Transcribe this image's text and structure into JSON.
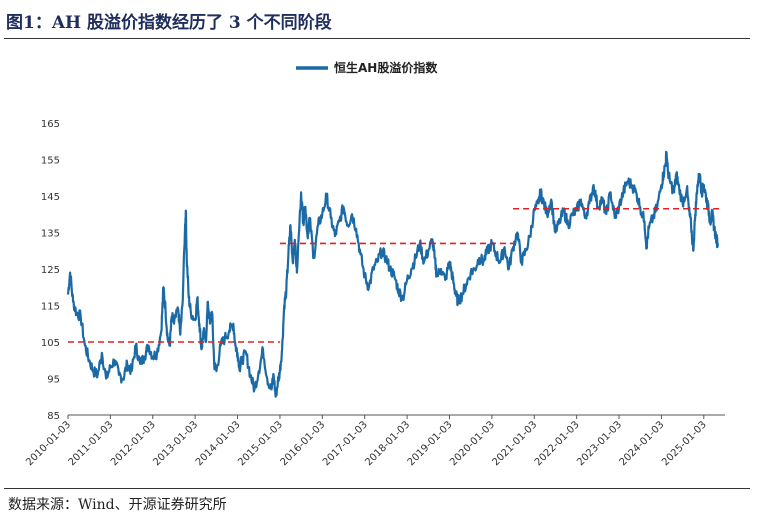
{
  "figure": {
    "title": "图1：AH 股溢价指数经历了 3 个不同阶段",
    "source": "数据来源：Wind、开源证券研究所"
  },
  "colors": {
    "series": "#1b6aa5",
    "reference": "#e02020"
  },
  "chart_data": {
    "type": "line",
    "title": "",
    "legend": [
      "恒生AH股溢价指数"
    ],
    "legend_position": "top-center",
    "xlabel": "",
    "ylabel": "",
    "ylim": [
      85,
      168
    ],
    "yticks": [
      85,
      95,
      105,
      115,
      125,
      135,
      145,
      155,
      165
    ],
    "xlim": [
      2010.0,
      2025.5
    ],
    "x_tick_labels": [
      "2010-01-03",
      "2011-01-03",
      "2012-01-03",
      "2013-01-03",
      "2014-01-03",
      "2015-01-03",
      "2016-01-03",
      "2017-01-03",
      "2018-01-03",
      "2019-01-03",
      "2020-01-03",
      "2021-01-03",
      "2022-01-03",
      "2023-01-03",
      "2024-01-03",
      "2025-01-03"
    ],
    "series": [
      {
        "name": "恒生AH股溢价指数",
        "points": [
          [
            2010.0,
            118
          ],
          [
            2010.05,
            124
          ],
          [
            2010.12,
            116
          ],
          [
            2010.2,
            113
          ],
          [
            2010.3,
            112
          ],
          [
            2010.4,
            104
          ],
          [
            2010.5,
            100
          ],
          [
            2010.6,
            97
          ],
          [
            2010.7,
            96
          ],
          [
            2010.8,
            102
          ],
          [
            2010.9,
            95
          ],
          [
            2011.0,
            98
          ],
          [
            2011.1,
            100
          ],
          [
            2011.2,
            96
          ],
          [
            2011.3,
            95
          ],
          [
            2011.4,
            99
          ],
          [
            2011.5,
            97
          ],
          [
            2011.6,
            104
          ],
          [
            2011.7,
            99
          ],
          [
            2011.8,
            101
          ],
          [
            2011.9,
            104
          ],
          [
            2012.0,
            101
          ],
          [
            2012.1,
            102
          ],
          [
            2012.2,
            108
          ],
          [
            2012.25,
            120
          ],
          [
            2012.3,
            114
          ],
          [
            2012.35,
            106
          ],
          [
            2012.4,
            104
          ],
          [
            2012.45,
            112
          ],
          [
            2012.5,
            110
          ],
          [
            2012.6,
            114
          ],
          [
            2012.65,
            107
          ],
          [
            2012.7,
            115
          ],
          [
            2012.76,
            136
          ],
          [
            2012.78,
            141
          ],
          [
            2012.8,
            128
          ],
          [
            2012.85,
            117
          ],
          [
            2012.9,
            113
          ],
          [
            2013.0,
            111
          ],
          [
            2013.05,
            117
          ],
          [
            2013.1,
            110
          ],
          [
            2013.15,
            103
          ],
          [
            2013.2,
            108
          ],
          [
            2013.25,
            105
          ],
          [
            2013.3,
            116
          ],
          [
            2013.35,
            110
          ],
          [
            2013.4,
            113
          ],
          [
            2013.45,
            99
          ],
          [
            2013.5,
            97
          ],
          [
            2013.6,
            104
          ],
          [
            2013.7,
            106
          ],
          [
            2013.8,
            108
          ],
          [
            2013.9,
            110
          ],
          [
            2013.95,
            104
          ],
          [
            2014.0,
            102
          ],
          [
            2014.05,
            98
          ],
          [
            2014.1,
            100
          ],
          [
            2014.2,
            102
          ],
          [
            2014.3,
            96
          ],
          [
            2014.4,
            92
          ],
          [
            2014.5,
            97
          ],
          [
            2014.6,
            103
          ],
          [
            2014.7,
            95
          ],
          [
            2014.8,
            92
          ],
          [
            2014.85,
            96
          ],
          [
            2014.9,
            90
          ],
          [
            2014.95,
            94
          ],
          [
            2015.0,
            97
          ],
          [
            2015.05,
            103
          ],
          [
            2015.1,
            115
          ],
          [
            2015.15,
            119
          ],
          [
            2015.2,
            129
          ],
          [
            2015.25,
            137
          ],
          [
            2015.3,
            127
          ],
          [
            2015.35,
            133
          ],
          [
            2015.4,
            124
          ],
          [
            2015.5,
            146
          ],
          [
            2015.55,
            138
          ],
          [
            2015.6,
            142
          ],
          [
            2015.65,
            134
          ],
          [
            2015.7,
            139
          ],
          [
            2015.8,
            128
          ],
          [
            2015.9,
            137
          ],
          [
            2016.0,
            140
          ],
          [
            2016.1,
            145
          ],
          [
            2016.2,
            139
          ],
          [
            2016.3,
            134
          ],
          [
            2016.4,
            138
          ],
          [
            2016.5,
            142
          ],
          [
            2016.6,
            137
          ],
          [
            2016.7,
            140
          ],
          [
            2016.8,
            136
          ],
          [
            2016.9,
            129
          ],
          [
            2017.0,
            123
          ],
          [
            2017.1,
            120
          ],
          [
            2017.2,
            125
          ],
          [
            2017.3,
            127
          ],
          [
            2017.4,
            130
          ],
          [
            2017.5,
            128
          ],
          [
            2017.6,
            125
          ],
          [
            2017.7,
            123
          ],
          [
            2017.8,
            119
          ],
          [
            2017.9,
            117
          ],
          [
            2018.0,
            122
          ],
          [
            2018.1,
            125
          ],
          [
            2018.2,
            128
          ],
          [
            2018.3,
            132
          ],
          [
            2018.4,
            127
          ],
          [
            2018.5,
            130
          ],
          [
            2018.6,
            133
          ],
          [
            2018.65,
            128
          ],
          [
            2018.7,
            123
          ],
          [
            2018.8,
            125
          ],
          [
            2018.9,
            122
          ],
          [
            2019.0,
            127
          ],
          [
            2019.05,
            124
          ],
          [
            2019.1,
            121
          ],
          [
            2019.15,
            118
          ],
          [
            2019.2,
            116
          ],
          [
            2019.3,
            118
          ],
          [
            2019.4,
            121
          ],
          [
            2019.5,
            124
          ],
          [
            2019.6,
            125
          ],
          [
            2019.7,
            128
          ],
          [
            2019.8,
            127
          ],
          [
            2019.9,
            130
          ],
          [
            2020.0,
            132
          ],
          [
            2020.1,
            129
          ],
          [
            2020.2,
            127
          ],
          [
            2020.3,
            131
          ],
          [
            2020.4,
            125
          ],
          [
            2020.5,
            131
          ],
          [
            2020.6,
            135
          ],
          [
            2020.7,
            127
          ],
          [
            2020.8,
            130
          ],
          [
            2020.9,
            134
          ],
          [
            2021.0,
            141
          ],
          [
            2021.1,
            143
          ],
          [
            2021.15,
            146
          ],
          [
            2021.2,
            144
          ],
          [
            2021.3,
            140
          ],
          [
            2021.4,
            144
          ],
          [
            2021.5,
            135
          ],
          [
            2021.6,
            138
          ],
          [
            2021.7,
            141
          ],
          [
            2021.8,
            137
          ],
          [
            2021.9,
            140
          ],
          [
            2022.0,
            141
          ],
          [
            2022.1,
            144
          ],
          [
            2022.2,
            139
          ],
          [
            2022.3,
            143
          ],
          [
            2022.4,
            148
          ],
          [
            2022.5,
            142
          ],
          [
            2022.6,
            144
          ],
          [
            2022.7,
            140
          ],
          [
            2022.8,
            146
          ],
          [
            2022.9,
            139
          ],
          [
            2023.0,
            142
          ],
          [
            2023.1,
            146
          ],
          [
            2023.2,
            149
          ],
          [
            2023.3,
            148
          ],
          [
            2023.4,
            146
          ],
          [
            2023.5,
            142
          ],
          [
            2023.6,
            138
          ],
          [
            2023.65,
            131
          ],
          [
            2023.7,
            136
          ],
          [
            2023.8,
            139
          ],
          [
            2023.9,
            142
          ],
          [
            2024.0,
            148
          ],
          [
            2024.05,
            151
          ],
          [
            2024.1,
            154
          ],
          [
            2024.12,
            157
          ],
          [
            2024.15,
            152
          ],
          [
            2024.2,
            149
          ],
          [
            2024.3,
            146
          ],
          [
            2024.35,
            151
          ],
          [
            2024.4,
            148
          ],
          [
            2024.5,
            143
          ],
          [
            2024.6,
            147
          ],
          [
            2024.65,
            141
          ],
          [
            2024.7,
            137
          ],
          [
            2024.75,
            130
          ],
          [
            2024.8,
            140
          ],
          [
            2024.85,
            148
          ],
          [
            2024.9,
            151
          ],
          [
            2024.95,
            146
          ],
          [
            2025.0,
            148
          ],
          [
            2025.05,
            145
          ],
          [
            2025.1,
            142
          ],
          [
            2025.15,
            138
          ],
          [
            2025.2,
            140
          ],
          [
            2025.25,
            136
          ],
          [
            2025.3,
            133
          ],
          [
            2025.33,
            132
          ]
        ]
      }
    ],
    "reference_lines": [
      {
        "name": "stage-1-average",
        "x0": 2010.0,
        "x1": 2015.0,
        "y": 105
      },
      {
        "name": "stage-2-average",
        "x0": 2015.0,
        "x1": 2020.5,
        "y": 132
      },
      {
        "name": "stage-3-average",
        "x0": 2020.5,
        "x1": 2025.4,
        "y": 141.5
      }
    ]
  }
}
